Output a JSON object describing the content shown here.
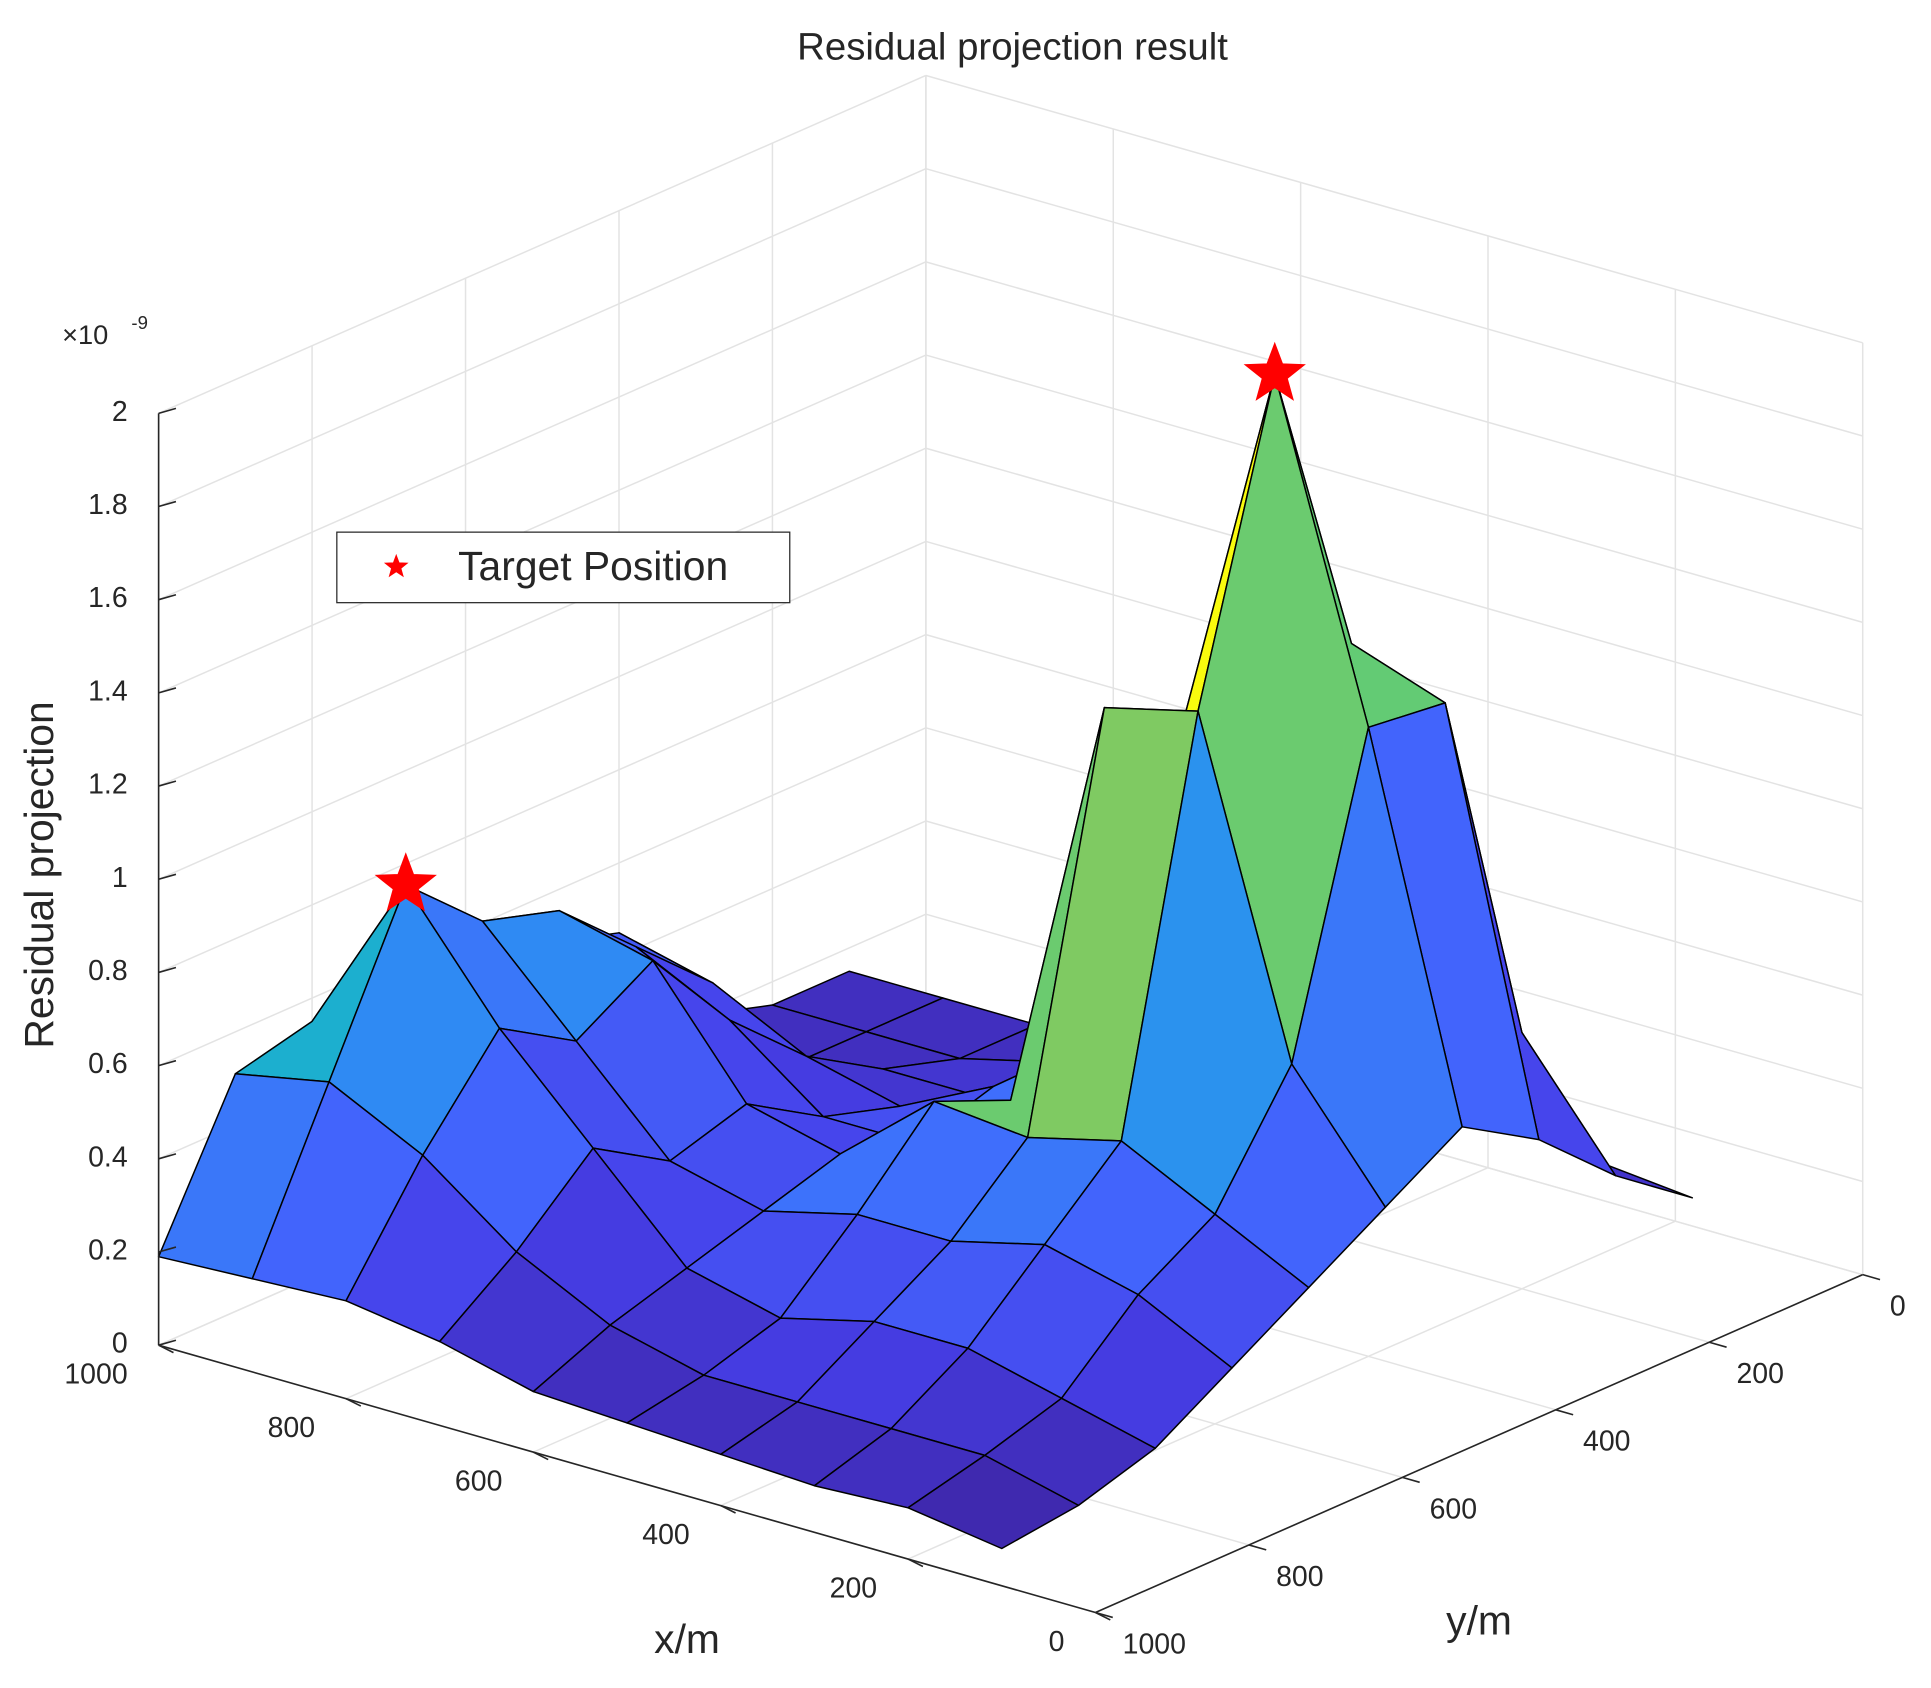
{
  "chart_data": {
    "type": "surface",
    "title": "Residual projection result",
    "x_label": "x/m",
    "y_label": "y/m",
    "z_label": "Residual projection",
    "z_multiplier": {
      "base": "×10",
      "power": "-9"
    },
    "x": [
      100,
      200,
      300,
      400,
      500,
      600,
      700,
      800,
      900,
      1000
    ],
    "y": [
      100,
      200,
      300,
      400,
      500,
      600,
      700,
      800,
      900,
      1000
    ],
    "z": [
      [
        0.18,
        0.2,
        0.35,
        0.3,
        0.25,
        0.2,
        0.15,
        0.15,
        0.15,
        0.15
      ],
      [
        0.3,
        0.55,
        0.8,
        0.6,
        0.35,
        0.25,
        0.2,
        0.15,
        0.15,
        0.15
      ],
      [
        0.45,
        1.33,
        1.4,
        0.44,
        0.4,
        0.3,
        0.2,
        0.2,
        0.15,
        0.2
      ],
      [
        0.55,
        1.35,
        2.05,
        1.23,
        0.5,
        0.35,
        0.25,
        0.3,
        0.4,
        0.45
      ],
      [
        0.45,
        0.7,
        1.4,
        1.35,
        0.45,
        0.3,
        0.3,
        0.45,
        0.55,
        0.5
      ],
      [
        0.35,
        0.45,
        0.55,
        0.5,
        0.52,
        0.35,
        0.4,
        0.65,
        0.7,
        0.55
      ],
      [
        0.25,
        0.35,
        0.4,
        0.35,
        0.35,
        0.3,
        0.35,
        0.55,
        0.75,
        0.55
      ],
      [
        0.15,
        0.2,
        0.25,
        0.25,
        0.2,
        0.25,
        0.45,
        0.65,
        0.9,
        0.55
      ],
      [
        0.1,
        0.15,
        0.15,
        0.15,
        0.15,
        0.2,
        0.3,
        0.45,
        0.55,
        0.51
      ],
      [
        0.08,
        0.11,
        0.1,
        0.11,
        0.12,
        0.13,
        0.18,
        0.21,
        0.2,
        0.19
      ]
    ],
    "targets": {
      "name": "Target Position",
      "color": "#ff0000",
      "x": [
        300,
        900
      ],
      "y": [
        400,
        800
      ],
      "z": [
        2.05,
        0.9
      ]
    },
    "xlim": [
      0,
      1000
    ],
    "ylim": [
      0,
      1000
    ],
    "zlim": [
      0,
      2
    ],
    "xticks": [
      0,
      200,
      400,
      600,
      800,
      1000
    ],
    "yticks": [
      0,
      200,
      400,
      600,
      800,
      1000
    ],
    "zticks": [
      0,
      0.2,
      0.4,
      0.6,
      0.8,
      1,
      1.2,
      1.4,
      1.6,
      1.8,
      2
    ],
    "grid": true,
    "colormap": "parula",
    "legend_position": "northwest"
  }
}
